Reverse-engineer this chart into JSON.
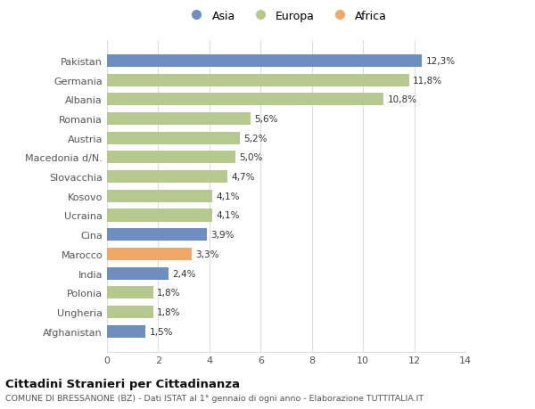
{
  "categories": [
    "Pakistan",
    "Germania",
    "Albania",
    "Romania",
    "Austria",
    "Macedonia d/N.",
    "Slovacchia",
    "Kosovo",
    "Ucraina",
    "Cina",
    "Marocco",
    "India",
    "Polonia",
    "Ungheria",
    "Afghanistan"
  ],
  "values": [
    12.3,
    11.8,
    10.8,
    5.6,
    5.2,
    5.0,
    4.7,
    4.1,
    4.1,
    3.9,
    3.3,
    2.4,
    1.8,
    1.8,
    1.5
  ],
  "labels": [
    "12,3%",
    "11,8%",
    "10,8%",
    "5,6%",
    "5,2%",
    "5,0%",
    "4,7%",
    "4,1%",
    "4,1%",
    "3,9%",
    "3,3%",
    "2,4%",
    "1,8%",
    "1,8%",
    "1,5%"
  ],
  "continents": [
    "Asia",
    "Europa",
    "Europa",
    "Europa",
    "Europa",
    "Europa",
    "Europa",
    "Europa",
    "Europa",
    "Asia",
    "Africa",
    "Asia",
    "Europa",
    "Europa",
    "Asia"
  ],
  "colors": {
    "Asia": "#6e8ebf",
    "Europa": "#b5c98e",
    "Africa": "#f0a868"
  },
  "legend": [
    "Asia",
    "Europa",
    "Africa"
  ],
  "legend_colors": [
    "#6e8ebf",
    "#b5c98e",
    "#f0a868"
  ],
  "xlim": [
    0,
    14
  ],
  "xticks": [
    0,
    2,
    4,
    6,
    8,
    10,
    12,
    14
  ],
  "title": "Cittadini Stranieri per Cittadinanza",
  "subtitle": "COMUNE DI BRESSANONE (BZ) - Dati ISTAT al 1° gennaio di ogni anno - Elaborazione TUTTITALIA.IT",
  "background_color": "#ffffff",
  "grid_color": "#dddddd"
}
